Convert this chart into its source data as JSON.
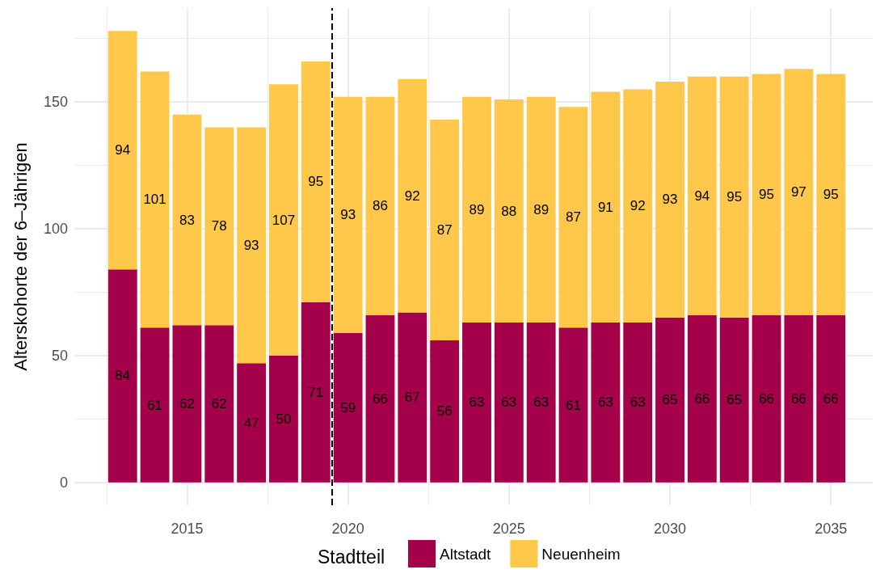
{
  "chart_data": {
    "type": "bar",
    "stacked": true,
    "ylabel": "Alterskohorte der 6–Jährigen",
    "legend_title": "Stadtteil",
    "legend": "bottom",
    "data_labels": true,
    "grid": true,
    "x": [
      2013,
      2014,
      2015,
      2016,
      2017,
      2018,
      2019,
      2020,
      2021,
      2022,
      2023,
      2024,
      2025,
      2026,
      2027,
      2028,
      2029,
      2030,
      2031,
      2032,
      2033,
      2034,
      2035
    ],
    "series": [
      {
        "name": "Altstadt",
        "color": "#a5004a",
        "values": [
          84,
          61,
          62,
          62,
          47,
          50,
          71,
          59,
          66,
          67,
          56,
          63,
          63,
          63,
          61,
          63,
          63,
          65,
          66,
          65,
          66,
          66,
          66
        ]
      },
      {
        "name": "Neuenheim",
        "color": "#ffc84a",
        "values": [
          94,
          101,
          83,
          78,
          93,
          107,
          95,
          93,
          86,
          92,
          87,
          89,
          88,
          89,
          87,
          91,
          92,
          93,
          94,
          95,
          95,
          97,
          95
        ]
      }
    ],
    "xlim": [
      2011.5,
      2036.3
    ],
    "xticks": [
      {
        "value": 2012.5,
        "label": null
      },
      2015,
      {
        "value": 2017.5,
        "label": null
      },
      2020,
      {
        "value": 2022.5,
        "label": null
      },
      2025,
      {
        "value": 2027.5,
        "label": null
      },
      2030,
      {
        "value": 2032.5,
        "label": null
      },
      2035
    ],
    "ylim": [
      -9,
      187
    ],
    "yticks": [
      0,
      {
        "value": 25,
        "label": null
      },
      50,
      {
        "value": 75,
        "label": null
      },
      100,
      {
        "value": 125,
        "label": null
      },
      150,
      {
        "value": 175,
        "label": null
      }
    ],
    "ref_lines": [
      {
        "axis": "x",
        "value": 2019.5,
        "color": "#000000",
        "line_style": "dashed"
      }
    ]
  }
}
